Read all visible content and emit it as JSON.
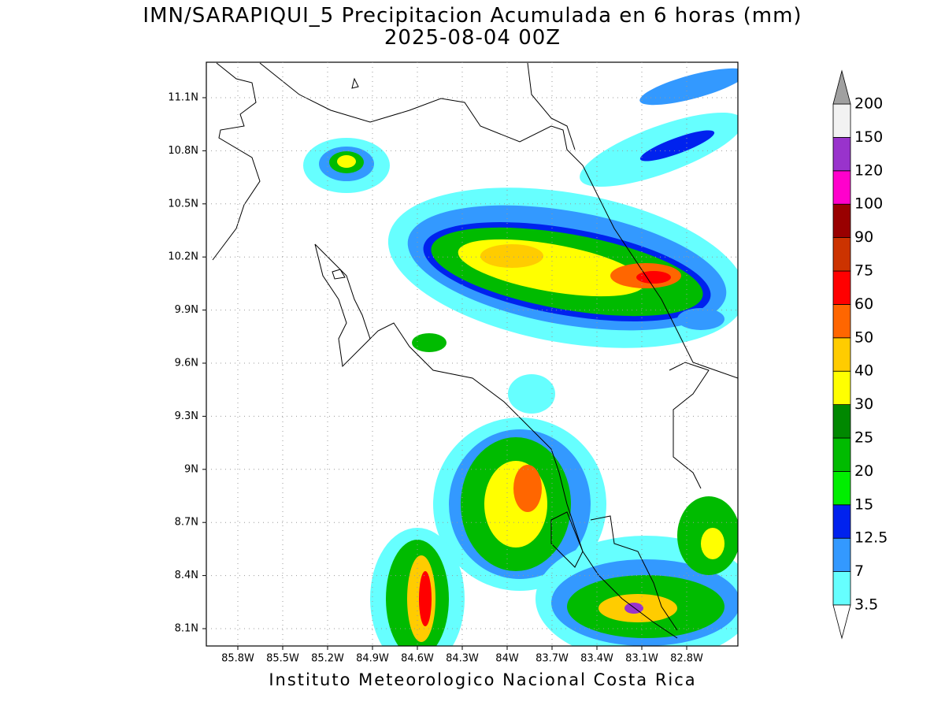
{
  "header": {
    "title": "IMN/SARAPIQUI_5 Precipitacion Acumulada en 6 horas (mm)",
    "subtitle": "2025-08-04 00Z"
  },
  "map": {
    "lat_ticks": [
      "11.1N",
      "10.8N",
      "10.5N",
      "10.2N",
      "9.9N",
      "9.6N",
      "9.3N",
      "9N",
      "8.7N",
      "8.4N",
      "8.1N"
    ],
    "lon_ticks": [
      "85.8W",
      "85.5W",
      "85.2W",
      "84.9W",
      "84.6W",
      "84.3W",
      "84W",
      "83.7W",
      "83.4W",
      "83.1W",
      "82.8W"
    ]
  },
  "colorbar": {
    "labels": [
      "3.5",
      "7",
      "12.5",
      "15",
      "20",
      "25",
      "30",
      "40",
      "50",
      "60",
      "75",
      "90",
      "100",
      "120",
      "150",
      "200"
    ],
    "colors": [
      "#66ffff",
      "#3399ff",
      "#0022ee",
      "#00ee00",
      "#00bb00",
      "#008800",
      "#ffff00",
      "#ffcc00",
      "#ff6600",
      "#ff0000",
      "#cc3300",
      "#990000",
      "#ff00cc",
      "#9933cc",
      "#f2f2f2"
    ],
    "under_color": "#ffffff",
    "over_color": "#a0a0a0"
  },
  "footer": "Instituto Meteorologico Nacional Costa Rica"
}
